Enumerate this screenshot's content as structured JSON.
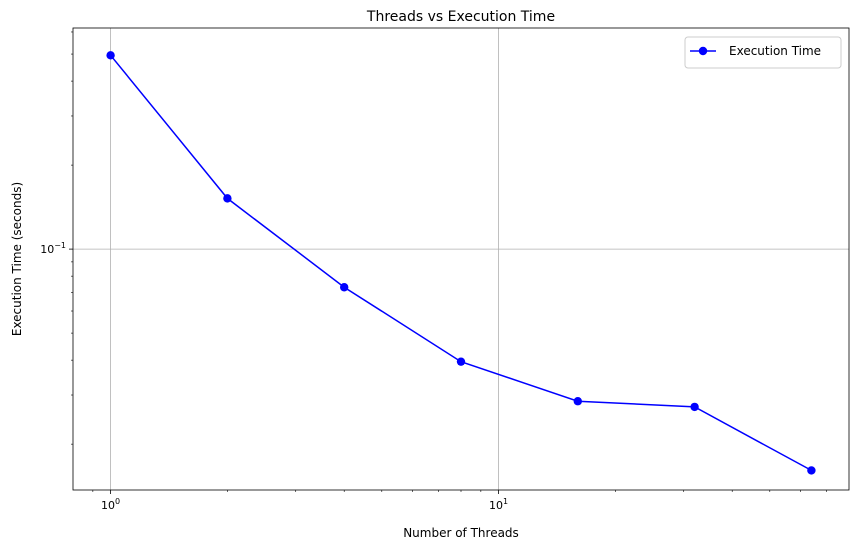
{
  "chart_data": {
    "type": "line",
    "title": "Threads vs Execution Time",
    "xlabel": "Number of Threads",
    "ylabel": "Execution Time (seconds)",
    "x_scale": "log",
    "y_scale": "log",
    "xlim": [
      0.8,
      80
    ],
    "ylim": [
      0.0137,
      0.62
    ],
    "grid": true,
    "legend_position": "top-right",
    "x_ticks": [
      {
        "value": 1,
        "base": "10",
        "exponent": "0"
      },
      {
        "value": 10,
        "base": "10",
        "exponent": "1"
      }
    ],
    "y_ticks": [
      {
        "value": 0.1,
        "base": "10",
        "exponent": "−1"
      }
    ],
    "series": [
      {
        "name": "Execution Time",
        "color": "#0000ff",
        "marker": "circle",
        "x": [
          1,
          2,
          4,
          8,
          16,
          32,
          64
        ],
        "y": [
          0.495,
          0.152,
          0.073,
          0.0395,
          0.0285,
          0.0272,
          0.0161
        ]
      }
    ]
  }
}
